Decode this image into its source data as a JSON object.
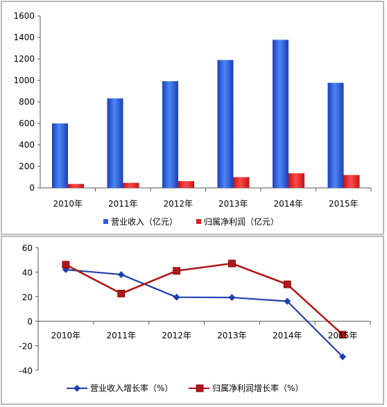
{
  "chart_data": [
    {
      "type": "bar",
      "title": "",
      "xlabel": "",
      "ylabel": "",
      "categories": [
        "2010年",
        "2011年",
        "2012年",
        "2013年",
        "2014年",
        "2015年"
      ],
      "ylim": [
        0,
        1600
      ],
      "yticks": [
        0,
        200,
        400,
        600,
        800,
        1000,
        1200,
        1400,
        1600
      ],
      "grid": false,
      "legend_position": "bottom",
      "series": [
        {
          "name": "营业收入（亿元）",
          "color": "#2f5ee0",
          "values": [
            600,
            833,
            993,
            1190,
            1378,
            978
          ]
        },
        {
          "name": "归属净利润（亿元）",
          "color": "#e02020",
          "values": [
            37,
            47,
            63,
            100,
            136,
            120
          ]
        }
      ]
    },
    {
      "type": "line",
      "title": "",
      "xlabel": "",
      "ylabel": "",
      "categories": [
        "2010年",
        "2011年",
        "2012年",
        "2013年",
        "2014年",
        "2015年"
      ],
      "ylim": [
        -40,
        60
      ],
      "yticks": [
        -40,
        -20,
        0,
        20,
        40,
        60
      ],
      "grid": false,
      "legend_position": "bottom",
      "series": [
        {
          "name": "营业收入增长率（%）",
          "color": "#1f3fb0",
          "marker": "diamond",
          "values": [
            42,
            38,
            19.5,
            19.3,
            16.2,
            -29
          ]
        },
        {
          "name": "归属净利润增长率（%）",
          "color": "#b01818",
          "marker": "square",
          "values": [
            46,
            22.5,
            41,
            47,
            30,
            -11
          ]
        }
      ]
    }
  ]
}
